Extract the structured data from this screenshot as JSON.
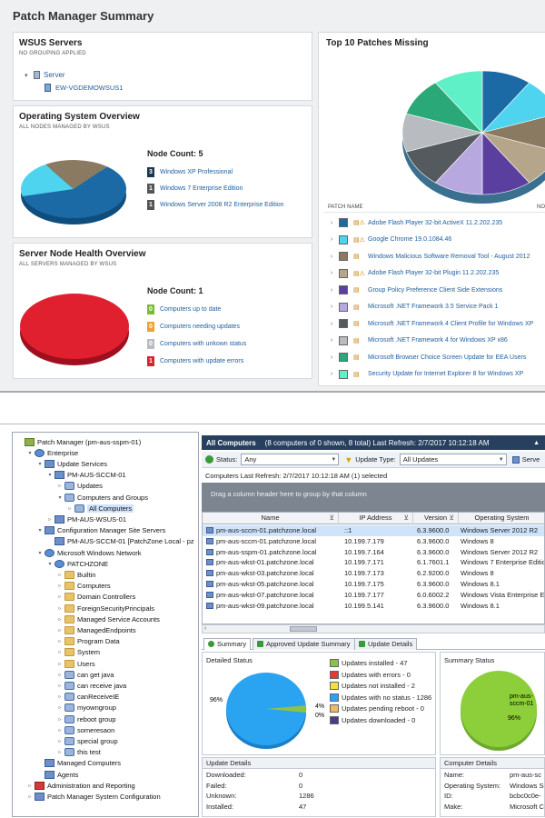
{
  "summary": {
    "title": "Patch Manager Summary",
    "wsus": {
      "title": "WSUS Servers",
      "subtitle": "NO GROUPING APPLIED",
      "server_group": "Server",
      "server_name": "EW-VGDEMOWSUS1"
    },
    "os_overview": {
      "title": "Operating System Overview",
      "subtitle": "ALL NODES MANAGED BY WSUS",
      "node_count": "Node Count: 5",
      "items": [
        {
          "count": "3",
          "label": "Windows XP Professional",
          "color": "#1b6aa5",
          "value": 3
        },
        {
          "count": "1",
          "label": "Windows 7 Enterprise Edition",
          "color": "#4fd4f0",
          "value": 1
        },
        {
          "count": "1",
          "label": "Windows Server 2008 R2 Enterprise Edition",
          "color": "#8a7a62",
          "value": 1
        }
      ]
    },
    "health": {
      "title": "Server Node Health Overview",
      "subtitle": "ALL SERVERS MANAGED BY WSUS",
      "node_count": "Node Count: 1",
      "items": [
        {
          "count": "0",
          "label": "Computers up to date",
          "color": "#7dba2f"
        },
        {
          "count": "0",
          "label": "Computers needing updates",
          "color": "#f0a030"
        },
        {
          "count": "0",
          "label": "Computers with unkown status",
          "color": "#b8bcc0"
        },
        {
          "count": "1",
          "label": "Computers with update errors",
          "color": "#d8202f"
        }
      ]
    },
    "top10": {
      "title": "Top 10 Patches Missing",
      "col_patch": "PATCH NAME",
      "col_no": "NO",
      "patches": [
        {
          "name": "Adobe Flash Player 32-bit ActiveX 11.2.202.235",
          "color": "#1b6aa5",
          "warn": true
        },
        {
          "name": "Google Chrome 19.0.1084.46",
          "color": "#4fd4f0",
          "warn": true
        },
        {
          "name": "Windows Malicious Software Removal Tool - August 2012",
          "color": "#8a7a62",
          "warn": false
        },
        {
          "name": "Adobe Flash Player 32-bit Plugin 11.2.202.235",
          "color": "#b5a58a",
          "warn": true
        },
        {
          "name": "Group Policy Preference Client Side Extensions",
          "color": "#5b3f9e",
          "warn": false
        },
        {
          "name": "Microsoft .NET Framework 3.5 Service Pack 1",
          "color": "#b8a8e0",
          "warn": false
        },
        {
          "name": "Microsoft .NET Framework 4 Client Profile for Windows XP",
          "color": "#555a5e",
          "warn": false
        },
        {
          "name": "Microsoft .NET Framework 4 for Windows XP x86",
          "color": "#b8bcc0",
          "warn": false
        },
        {
          "name": "Microsoft Browser Choice Screen Update for EEA Users",
          "color": "#2aa878",
          "warn": false
        },
        {
          "name": "Security Update for Internet Explorer 8 for Windows XP",
          "color": "#5ff0c8",
          "warn": false
        }
      ]
    }
  },
  "console": {
    "tree": [
      {
        "label": "Patch Manager (pm-aus-sspm-01)",
        "indent": 0,
        "icon": "pm",
        "tw": ""
      },
      {
        "label": "Enterprise",
        "indent": 1,
        "icon": "net",
        "tw": "▾"
      },
      {
        "label": "Update Services",
        "indent": 2,
        "icon": "comp",
        "tw": "▾"
      },
      {
        "label": "PM-AUS-SCCM-01",
        "indent": 3,
        "icon": "comp",
        "tw": "▾"
      },
      {
        "label": "Updates",
        "indent": 4,
        "icon": "grp",
        "tw": "▹"
      },
      {
        "label": "Computers and Groups",
        "indent": 4,
        "icon": "grp",
        "tw": "▾"
      },
      {
        "label": "All Computers",
        "indent": 5,
        "icon": "grp",
        "tw": "▹"
      },
      {
        "label": "PM-AUS-WSUS-01",
        "indent": 3,
        "icon": "comp",
        "tw": "▹"
      },
      {
        "label": "Configuration Manager Site Servers",
        "indent": 2,
        "icon": "comp",
        "tw": "▾"
      },
      {
        "label": "PM-AUS-SCCM-01 [PatchZone Local - pz",
        "indent": 3,
        "icon": "comp",
        "tw": ""
      },
      {
        "label": "Microsoft Windows Network",
        "indent": 2,
        "icon": "net",
        "tw": "▾"
      },
      {
        "label": "PATCHZONE",
        "indent": 3,
        "icon": "net",
        "tw": "▾"
      },
      {
        "label": "Builtin",
        "indent": 4,
        "icon": "folder",
        "tw": "▹"
      },
      {
        "label": "Computers",
        "indent": 4,
        "icon": "folder",
        "tw": "▹"
      },
      {
        "label": "Domain Controllers",
        "indent": 4,
        "icon": "folder",
        "tw": "▹"
      },
      {
        "label": "ForeignSecurityPrincipals",
        "indent": 4,
        "icon": "folder",
        "tw": "▹"
      },
      {
        "label": "Managed Service Accounts",
        "indent": 4,
        "icon": "folder",
        "tw": "▹"
      },
      {
        "label": "ManagedEndpoints",
        "indent": 4,
        "icon": "folder",
        "tw": "▹"
      },
      {
        "label": "Program Data",
        "indent": 4,
        "icon": "folder",
        "tw": "▹"
      },
      {
        "label": "System",
        "indent": 4,
        "icon": "folder",
        "tw": "▹"
      },
      {
        "label": "Users",
        "indent": 4,
        "icon": "folder",
        "tw": "▹"
      },
      {
        "label": "can get java",
        "indent": 4,
        "icon": "grp",
        "tw": "▹"
      },
      {
        "label": "can receive java",
        "indent": 4,
        "icon": "grp",
        "tw": "▹"
      },
      {
        "label": "canReceiveIE",
        "indent": 4,
        "icon": "grp",
        "tw": "▹"
      },
      {
        "label": "myowngroup",
        "indent": 4,
        "icon": "grp",
        "tw": "▹"
      },
      {
        "label": "reboot group",
        "indent": 4,
        "icon": "grp",
        "tw": "▹"
      },
      {
        "label": "someresaon",
        "indent": 4,
        "icon": "grp",
        "tw": "▹"
      },
      {
        "label": "special group",
        "indent": 4,
        "icon": "grp",
        "tw": "▹"
      },
      {
        "label": "this test",
        "indent": 4,
        "icon": "grp",
        "tw": "▹"
      },
      {
        "label": "Managed Computers",
        "indent": 2,
        "icon": "comp",
        "tw": ""
      },
      {
        "label": "Agents",
        "indent": 2,
        "icon": "comp",
        "tw": ""
      },
      {
        "label": "Administration and Reporting",
        "indent": 1,
        "icon": "red",
        "tw": "▹"
      },
      {
        "label": "Patch Manager System Configuration",
        "indent": 1,
        "icon": "comp",
        "tw": "▹"
      }
    ],
    "header_title": "All Computers",
    "header_info": "(8 computers of 0 shown, 8 total) Last Refresh: 2/7/2017 10:12:18 AM",
    "status_label": "Status:",
    "status_value": "Any",
    "update_type_label": "Update Type:",
    "update_type_value": "All Updates",
    "serve_label": "Serve",
    "refresh_text": "Computers Last Refresh: 2/7/2017 10:12:18 AM  (1) selected",
    "group_hint": "Drag a column header here to group by that column",
    "columns": [
      "Name",
      "IP Address",
      "Version",
      "Operating System"
    ],
    "rows": [
      {
        "name": "pm-aus-sccm-01.patchzone.local",
        "ip": "::1",
        "version": "6.3.9600.0",
        "os": "Windows Server 2012 R2",
        "selected": true
      },
      {
        "name": "pm-aus-sccm-01.patchzone.local",
        "ip": "10.199.7.179",
        "version": "6.3.9600.0",
        "os": "Windows 8",
        "selected": false
      },
      {
        "name": "pm-aus-sspm-01.patchzone.local",
        "ip": "10.199.7.164",
        "version": "6.3.9600.0",
        "os": "Windows Server 2012 R2",
        "selected": false
      },
      {
        "name": "pm-aus-wkst-01.patchzone.local",
        "ip": "10.199.7.171",
        "version": "6.1.7601.1",
        "os": "Windows 7 Enterprise Editio",
        "selected": false
      },
      {
        "name": "pm-aus-wkst-03.patchzone.local",
        "ip": "10.199.7.173",
        "version": "6.2.9200.0",
        "os": "Windows 8",
        "selected": false
      },
      {
        "name": "pm-aus-wkst-05.patchzone.local",
        "ip": "10.199.7.175",
        "version": "6.3.9600.0",
        "os": "Windows 8.1",
        "selected": false
      },
      {
        "name": "pm-aus-wkst-07.patchzone.local",
        "ip": "10.199.7.177",
        "version": "6.0.6002.2",
        "os": "Windows Vista Enterprise Ec",
        "selected": false
      },
      {
        "name": "pm-aus-wkst-09.patchzone.local",
        "ip": "10.199.5.141",
        "version": "6.3.9600.0",
        "os": "Windows 8.1",
        "selected": false
      }
    ],
    "tabs": [
      "Summary",
      "Approved Update Summary",
      "Update Details"
    ],
    "detailed_status_title": "Detailed Status",
    "pie_label_96": "96%",
    "pie_label_4": "4%",
    "pie_label_0": "0%",
    "status_legend": [
      {
        "label": "Updates installed - 47",
        "color": "#8bc34a"
      },
      {
        "label": "Updates with errors - 0",
        "color": "#e53935"
      },
      {
        "label": "Updates not installed - 2",
        "color": "#f0e040"
      },
      {
        "label": "Updates with no status - 1286",
        "color": "#29a3f0"
      },
      {
        "label": "Updates pending reboot - 0",
        "color": "#f4b860"
      },
      {
        "label": "Updates downloaded - 0",
        "color": "#4b3c8c"
      }
    ],
    "summary_status_title": "Summary Status",
    "summary_pie_label": "pm-aus-\nsccm-01",
    "summary_pie_96": "96%",
    "update_details_title": "Update Details",
    "update_details": [
      {
        "k": "Downloaded:",
        "v": "0"
      },
      {
        "k": "Failed:",
        "v": "0"
      },
      {
        "k": "Unknown:",
        "v": "1286"
      },
      {
        "k": "Installed:",
        "v": "47"
      }
    ],
    "computer_details_title": "Computer Details",
    "computer_details": [
      {
        "k": "Name:",
        "v": "pm-aus-sc"
      },
      {
        "k": "Operating System:",
        "v": "Windows Se"
      },
      {
        "k": "ID:",
        "v": "bcbc0c0e-"
      },
      {
        "k": "Make:",
        "v": "Microsoft C"
      }
    ]
  }
}
